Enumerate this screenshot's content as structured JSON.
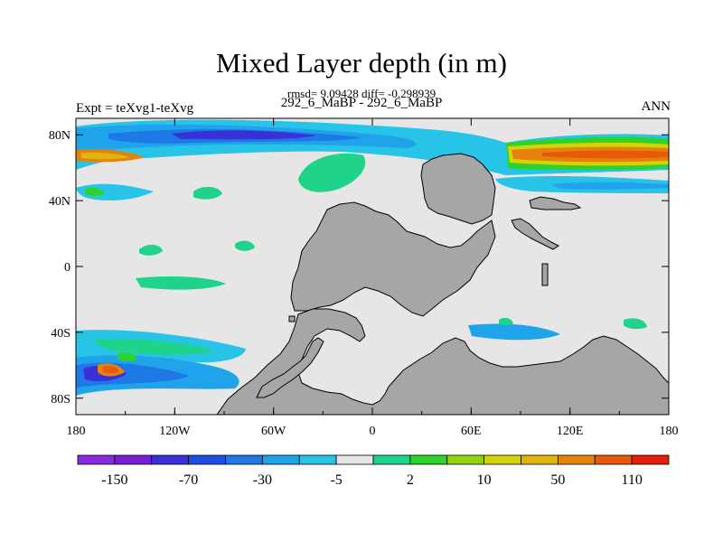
{
  "title": "Mixed Layer depth (in m)",
  "stats": "rmsd= 9.09428 diff= -0.298939",
  "case_label": "292_6_MaBP - 292_6_MaBP",
  "expt_label": "Expt = teXvg1-teXvg",
  "season_label": "ANN",
  "map": {
    "land_color": "#a6a6a6",
    "ocean_color": "#e6e6e6",
    "lon_ticks": [
      "180",
      "120W",
      "60W",
      "0",
      "60E",
      "120E",
      "180"
    ],
    "lat_ticks": [
      "80N",
      "40N",
      "0",
      "40S",
      "80S"
    ]
  },
  "colorbar": {
    "colors": [
      "#8a2be2",
      "#7a1fd6",
      "#3b2fd8",
      "#1f4fe0",
      "#1e78e6",
      "#1fa3ea",
      "#27c4e8",
      "#e6e6e6",
      "#1fd38a",
      "#2ed32a",
      "#8fd40f",
      "#d6d20a",
      "#e0b40a",
      "#e6820a",
      "#e65a0a",
      "#e61e0a"
    ],
    "labels": [
      "-150",
      "-70",
      "-30",
      "-5",
      "2",
      "10",
      "50",
      "110"
    ]
  }
}
